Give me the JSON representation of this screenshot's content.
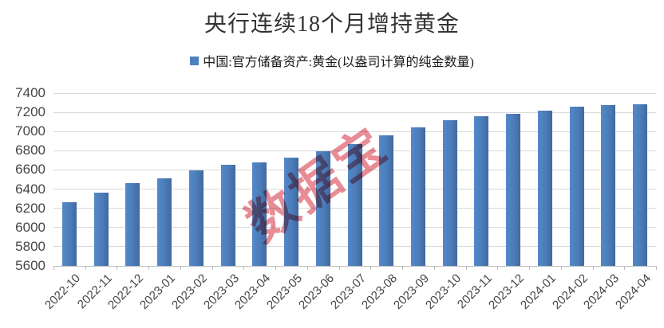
{
  "chart_data": {
    "type": "bar",
    "title": "央行连续18个月增持黄金",
    "legend": "中国:官方储备资产:黄金(以盎司计算的纯金数量)",
    "categories": [
      "2022-10",
      "2022-11",
      "2022-12",
      "2023-01",
      "2023-02",
      "2023-03",
      "2023-04",
      "2023-05",
      "2023-06",
      "2023-07",
      "2023-08",
      "2023-09",
      "2023-10",
      "2023-11",
      "2023-12",
      "2024-01",
      "2024-02",
      "2024-03",
      "2024-04"
    ],
    "values": [
      6264,
      6367,
      6464,
      6512,
      6592,
      6650,
      6676,
      6727,
      6795,
      6869,
      6962,
      7046,
      7120,
      7158,
      7187,
      7219,
      7258,
      7274,
      7280
    ],
    "ylim": [
      5600,
      7400
    ],
    "ytick_step": 200,
    "yticks": [
      5600,
      5800,
      6000,
      6200,
      6400,
      6600,
      6800,
      7000,
      7200,
      7400
    ],
    "grid": true,
    "legend_position": "top",
    "bar_color": "#4F81BD",
    "watermark": "数据宝",
    "watermark_color": "#e0606c"
  }
}
